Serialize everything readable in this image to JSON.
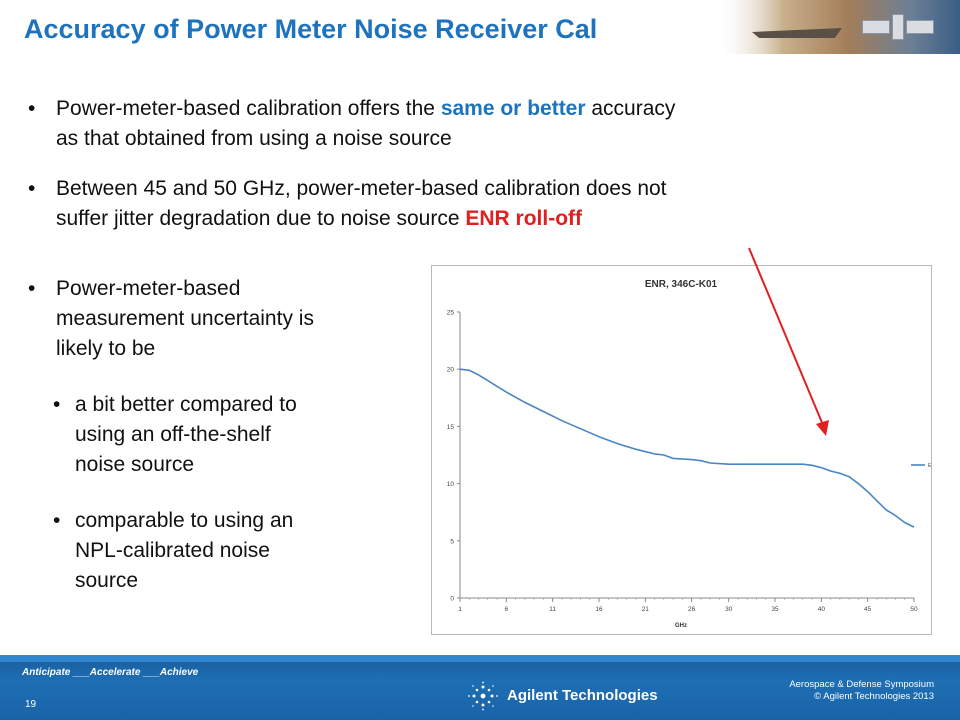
{
  "slide": {
    "title": "Accuracy of Power Meter Noise Receiver Cal",
    "bullets": [
      {
        "line1_pre": "Power-meter-based calibration offers the ",
        "line1_highlight": "same or better",
        "line1_post": " accuracy",
        "line2": "as that obtained from using a noise source"
      },
      {
        "line1": "Between 45 and 50 GHz, power-meter-based calibration does not",
        "line2_pre": "suffer jitter degradation due to noise source ",
        "line2_highlight": "ENR roll-off"
      },
      {
        "lines": [
          "Power-meter-based",
          "measurement uncertainty is",
          "likely to be"
        ]
      }
    ],
    "sub_bullets": [
      {
        "lines": [
          "a bit better compared to",
          "using an off-the-shelf",
          "noise source"
        ]
      },
      {
        "lines": [
          "comparable to using an",
          "NPL-calibrated noise",
          "source"
        ]
      }
    ],
    "bullet_glyph": "•",
    "colors": {
      "title": "#1e73be",
      "highlight_blue": "#1e73be",
      "highlight_red": "#e02020",
      "arrow": "#e02020",
      "line": "#4a86c5",
      "footer": "#1e6eb4"
    }
  },
  "chart_data": {
    "type": "line",
    "title": "ENR, 346C-K01",
    "xlabel": "GHz",
    "ylabel": "",
    "x_ticks": [
      1,
      6,
      11,
      16,
      21,
      26,
      30,
      35,
      40,
      45,
      50
    ],
    "y_ticks": [
      0,
      5,
      10,
      15,
      20,
      25
    ],
    "xlim": [
      1,
      50
    ],
    "ylim": [
      0,
      25
    ],
    "grid": false,
    "legend_position": "right",
    "series": [
      {
        "name": "ENR",
        "x": [
          1,
          2,
          3,
          4,
          5,
          6,
          8,
          10,
          12,
          14,
          16,
          18,
          20,
          22,
          23,
          24,
          26,
          27,
          28,
          30,
          32,
          34,
          36,
          38,
          39,
          40,
          41,
          42,
          43,
          44,
          45,
          46,
          47,
          48,
          49,
          50
        ],
        "y": [
          20.0,
          19.9,
          19.5,
          19.0,
          18.5,
          18.0,
          17.1,
          16.3,
          15.5,
          14.8,
          14.1,
          13.5,
          13.0,
          12.6,
          12.5,
          12.2,
          12.1,
          12.0,
          11.8,
          11.7,
          11.7,
          11.7,
          11.7,
          11.7,
          11.6,
          11.4,
          11.1,
          10.9,
          10.6,
          10.0,
          9.3,
          8.5,
          7.7,
          7.2,
          6.6,
          6.2
        ]
      }
    ]
  },
  "footer": {
    "tagline": "Anticipate ___Accelerate ___Achieve",
    "page_number": "19",
    "brand": "Agilent Technologies",
    "event_line1": "Aerospace & Defense Symposium",
    "event_line2": "© Agilent Technologies 2013"
  }
}
